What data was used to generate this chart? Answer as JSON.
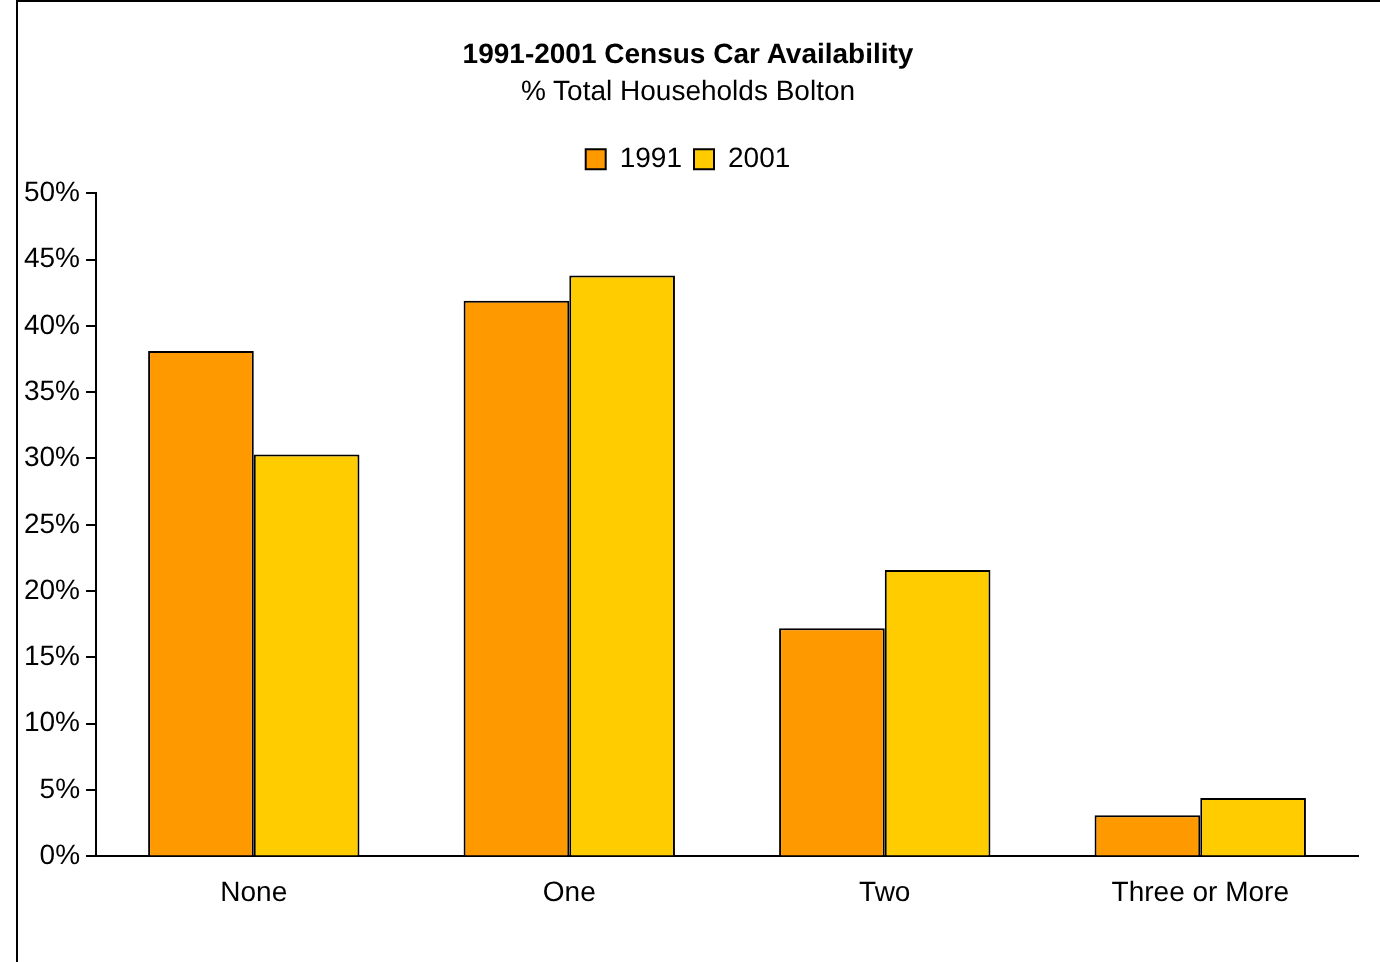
{
  "chart_data": {
    "type": "bar",
    "title": "1991-2001 Census Car Availability",
    "subtitle": "% Total Households Bolton",
    "categories": [
      "None",
      "One",
      "Two",
      "Three or More"
    ],
    "series": [
      {
        "name": "1991",
        "color": "#ff9900",
        "values": [
          38.1,
          41.9,
          17.2,
          3.1
        ]
      },
      {
        "name": "2001",
        "color": "#ffcc00",
        "values": [
          30.3,
          43.8,
          21.6,
          4.4
        ]
      }
    ],
    "ylim": [
      0,
      50
    ],
    "yticks": [
      {
        "value": 0,
        "label": "0%"
      },
      {
        "value": 5,
        "label": "5%"
      },
      {
        "value": 10,
        "label": "10%"
      },
      {
        "value": 15,
        "label": "15%"
      },
      {
        "value": 20,
        "label": "20%"
      },
      {
        "value": 25,
        "label": "25%"
      },
      {
        "value": 30,
        "label": "30%"
      },
      {
        "value": 35,
        "label": "35%"
      },
      {
        "value": 40,
        "label": "40%"
      },
      {
        "value": 45,
        "label": "45%"
      },
      {
        "value": 50,
        "label": "50%"
      }
    ],
    "grid": false,
    "legend": "top"
  }
}
